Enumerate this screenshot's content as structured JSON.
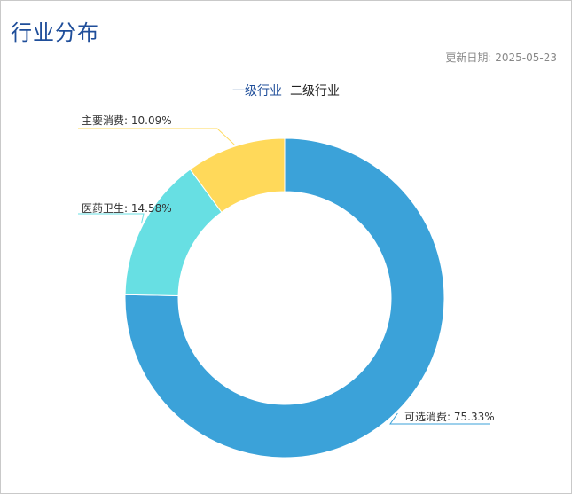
{
  "header": {
    "title": "行业分布",
    "update_text": "更新日期: 2025-05-23"
  },
  "tabs": [
    {
      "label": "一级行业",
      "active": true
    },
    {
      "label": "二级行业",
      "active": false
    }
  ],
  "chart_data": {
    "type": "pie",
    "variant": "donut",
    "start": "top",
    "direction": "clockwise",
    "slices": [
      {
        "name": "可选消费",
        "value": 75.33,
        "label": "可选消费: 75.33%",
        "color": "#3ba2d9"
      },
      {
        "name": "医药卫生",
        "value": 14.58,
        "label": "医药卫生: 14.58%",
        "color": "#67dfe3"
      },
      {
        "name": "主要消费",
        "value": 10.09,
        "label": "主要消费: 10.09%",
        "color": "#ffd95a"
      }
    ]
  }
}
